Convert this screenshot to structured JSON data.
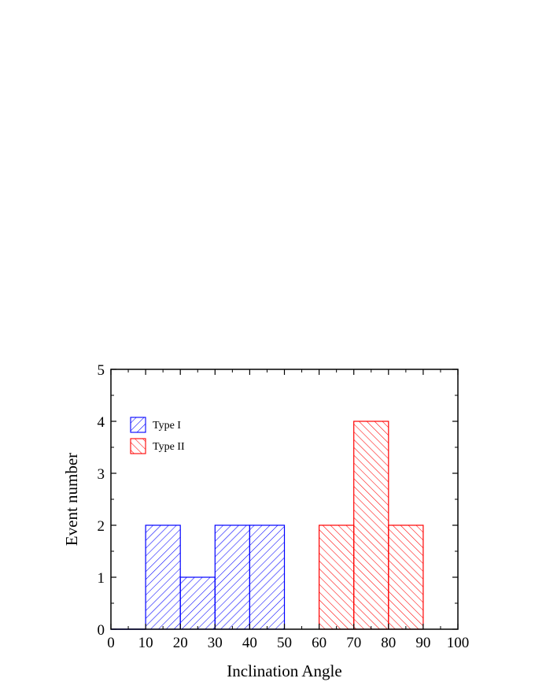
{
  "chart_data": {
    "type": "bar",
    "xlabel": "Inclination Angle",
    "ylabel": "Event number",
    "xlim": [
      0,
      100
    ],
    "ylim": [
      0,
      5
    ],
    "xticks": [
      "0",
      "10",
      "20",
      "30",
      "40",
      "50",
      "60",
      "70",
      "80",
      "90",
      "100"
    ],
    "yticks": [
      "0",
      "1",
      "2",
      "3",
      "4",
      "5"
    ],
    "bin_width": 10,
    "series": [
      {
        "name": "Type I",
        "color": "#0000ff",
        "hatch": "forward-diagonal",
        "bins": [
          {
            "from": 0,
            "to": 10,
            "value": 0
          },
          {
            "from": 10,
            "to": 20,
            "value": 2
          },
          {
            "from": 20,
            "to": 30,
            "value": 1
          },
          {
            "from": 30,
            "to": 40,
            "value": 2
          },
          {
            "from": 40,
            "to": 50,
            "value": 2
          }
        ]
      },
      {
        "name": "Type II",
        "color": "#ff0000",
        "hatch": "backward-diagonal",
        "bins": [
          {
            "from": 60,
            "to": 70,
            "value": 2
          },
          {
            "from": 70,
            "to": 80,
            "value": 4
          },
          {
            "from": 80,
            "to": 90,
            "value": 2
          }
        ]
      }
    ],
    "legend": {
      "position": "top-left"
    },
    "grid": false
  }
}
